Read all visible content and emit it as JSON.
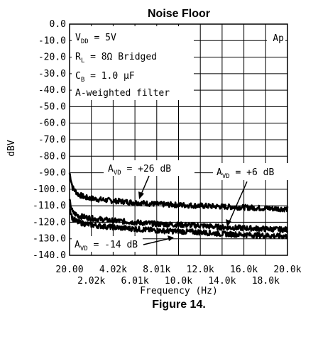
{
  "figure_caption": "Figure 14.",
  "chart_data": {
    "type": "line",
    "title": "Noise Floor",
    "xlabel": "Frequency (Hz)",
    "ylabel": "dBV",
    "xlim": [
      20,
      20000
    ],
    "ylim": [
      -140,
      0
    ],
    "grid": true,
    "x_ticks_row1": [
      "20.00",
      "4.02k",
      "8.01k",
      "12.0k",
      "16.0k",
      "20.0k"
    ],
    "x_ticks_row2": [
      "2.02k",
      "6.01k",
      "10.0k",
      "14.0k",
      "18.0k"
    ],
    "y_ticks": [
      "0.0",
      "-10.0",
      "-20.0",
      "-30.0",
      "-40.0",
      "-50.0",
      "-60.0",
      "-70.0",
      "-80.0",
      "-90.0",
      "-100.0",
      "-110.0",
      "-120.0",
      "-130.0",
      "-140.0"
    ],
    "logo": "Ap",
    "conditions": {
      "vdd": {
        "main": "V",
        "sub": "DD",
        "rest": " = 5V"
      },
      "rl": {
        "main": "R",
        "sub": "L",
        "rest": " = 8Ω Bridged"
      },
      "cb": {
        "main": "C",
        "sub": "B",
        "rest": " = 1.0 μF"
      },
      "filter": "A-weighted filter"
    },
    "series": [
      {
        "annotation": {
          "main": "A",
          "sub": "VD",
          "rest": " = +26 dB"
        },
        "x": [
          20,
          300,
          800,
          1500,
          2500,
          4000,
          6000,
          8000,
          10000,
          12000,
          14000,
          16000,
          18000,
          20000
        ],
        "y": [
          -90,
          -99,
          -103,
          -105,
          -106,
          -107,
          -108,
          -109,
          -109.5,
          -110,
          -110.5,
          -111,
          -111.5,
          -112
        ]
      },
      {
        "annotation": {
          "main": "A",
          "sub": "VD",
          "rest": " = +6 dB"
        },
        "x": [
          20,
          300,
          800,
          1500,
          2500,
          4000,
          6000,
          8000,
          10000,
          12000,
          14000,
          16000,
          18000,
          20000
        ],
        "y": [
          -107,
          -114,
          -116,
          -117,
          -118,
          -119,
          -120,
          -121,
          -121.5,
          -122,
          -123,
          -123.5,
          -124,
          -124.5
        ]
      },
      {
        "annotation": {
          "main": "A",
          "sub": "VD",
          "rest": " = -14 dB"
        },
        "x": [
          20,
          300,
          800,
          1500,
          2500,
          4000,
          6000,
          8000,
          10000,
          12000,
          14000,
          16000,
          18000,
          20000
        ],
        "y": [
          -111,
          -118,
          -120,
          -121,
          -122,
          -123,
          -124,
          -125,
          -125.5,
          -126,
          -127,
          -127.5,
          -128,
          -128.5
        ]
      }
    ]
  }
}
